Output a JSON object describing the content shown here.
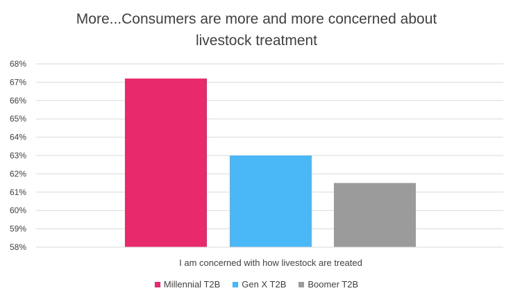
{
  "title_line1": "More...Consumers are more and more concerned about",
  "title_line2": "livestock treatment",
  "chart_data": {
    "type": "bar",
    "title": "More...Consumers are more and more concerned about livestock treatment",
    "categories": [
      "I am concerned with how livestock are treated"
    ],
    "series": [
      {
        "name": "Millennial T2B",
        "values": [
          67.2
        ],
        "color": "#e8296b"
      },
      {
        "name": "Gen X T2B",
        "values": [
          63.0
        ],
        "color": "#4ab7f7"
      },
      {
        "name": "Boomer T2B",
        "values": [
          61.5
        ],
        "color": "#9b9b9b"
      }
    ],
    "ylim": [
      58,
      68
    ],
    "yticks": [
      "58%",
      "59%",
      "60%",
      "61%",
      "62%",
      "63%",
      "64%",
      "65%",
      "66%",
      "67%",
      "68%"
    ],
    "grid": true,
    "legend": "bottom"
  }
}
